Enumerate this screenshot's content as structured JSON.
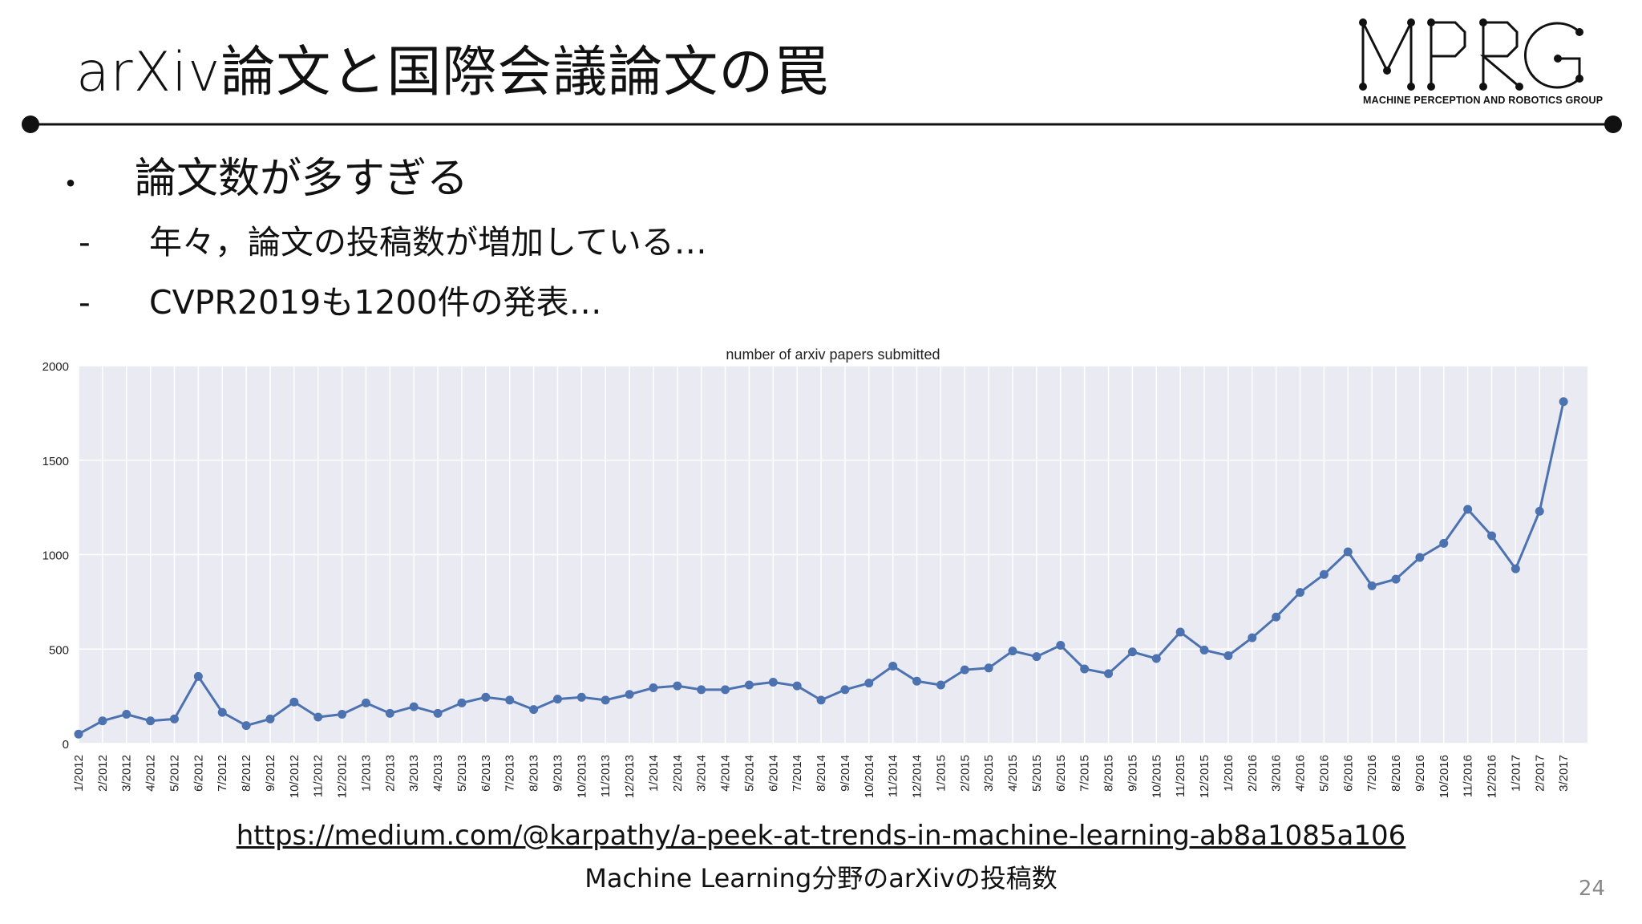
{
  "slide": {
    "title": "arXiv論文と国際会議論文の罠",
    "logo_text": "MPRG",
    "logo_subtitle": "MACHINE PERCEPTION AND ROBOTICS GROUP",
    "bullet_mark": "・",
    "bullet": "論文数が多すぎる",
    "sub_dash": "-",
    "sub_bullets": [
      "年々，論文の投稿数が増加している…",
      "CVPR2019も1200件の発表…"
    ],
    "url": "https://medium.com/@karpathy/a-peek-at-trends-in-machine-learning-ab8a1085a106",
    "caption": "Machine Learning分野のarXivの投稿数",
    "page_number": "24"
  },
  "colors": {
    "line": "#4c72b0",
    "plot_bg": "#eaeaf2",
    "grid": "#ffffff",
    "text": "#111111"
  },
  "chart_data": {
    "type": "line",
    "title": "number of arxiv papers submitted",
    "xlabel": "",
    "ylabel": "",
    "ylim": [
      0,
      2000
    ],
    "yticks": [
      0,
      500,
      1000,
      1500,
      2000
    ],
    "grid": true,
    "categories": [
      "1/2012",
      "2/2012",
      "3/2012",
      "4/2012",
      "5/2012",
      "6/2012",
      "7/2012",
      "8/2012",
      "9/2012",
      "10/2012",
      "11/2012",
      "12/2012",
      "1/2013",
      "2/2013",
      "3/2013",
      "4/2013",
      "5/2013",
      "6/2013",
      "7/2013",
      "8/2013",
      "9/2013",
      "10/2013",
      "11/2013",
      "12/2013",
      "1/2014",
      "2/2014",
      "3/2014",
      "4/2014",
      "5/2014",
      "6/2014",
      "7/2014",
      "8/2014",
      "9/2014",
      "10/2014",
      "11/2014",
      "12/2014",
      "1/2015",
      "2/2015",
      "3/2015",
      "4/2015",
      "5/2015",
      "6/2015",
      "7/2015",
      "8/2015",
      "9/2015",
      "10/2015",
      "11/2015",
      "12/2015",
      "1/2016",
      "2/2016",
      "3/2016",
      "4/2016",
      "5/2016",
      "6/2016",
      "7/2016",
      "8/2016",
      "9/2016",
      "10/2016",
      "11/2016",
      "12/2016",
      "1/2017",
      "2/2017",
      "3/2017"
    ],
    "values": [
      50,
      120,
      155,
      120,
      130,
      355,
      165,
      95,
      130,
      220,
      140,
      155,
      215,
      160,
      195,
      160,
      215,
      245,
      230,
      180,
      235,
      245,
      230,
      260,
      295,
      305,
      285,
      285,
      310,
      325,
      305,
      230,
      285,
      320,
      410,
      330,
      310,
      390,
      400,
      490,
      460,
      520,
      395,
      370,
      485,
      450,
      590,
      495,
      465,
      560,
      670,
      800,
      895,
      1015,
      835,
      870,
      985,
      1060,
      1240,
      1100,
      925,
      1230,
      1810
    ]
  }
}
